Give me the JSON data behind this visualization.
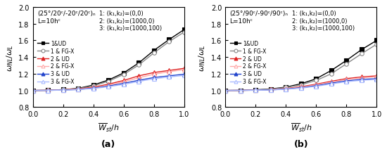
{
  "subplot_a": {
    "title_line1": "(25°/20ᶜ/-20ᶜ/20ᶜ)ₙ",
    "title_line2": "L=10hᶜ",
    "xlabel": "$\\overline{W}_{st}/h$",
    "ylabel": "$\\omega_{NL}/\\omega_L$",
    "label_note": "(a)",
    "x": [
      0.0,
      0.1,
      0.2,
      0.3,
      0.4,
      0.5,
      0.6,
      0.7,
      0.8,
      0.9,
      1.0
    ],
    "series": [
      {
        "label": "1&UD",
        "color": "#000000",
        "marker": "s",
        "filled": true,
        "data": [
          1.0,
          1.002,
          1.01,
          1.025,
          1.065,
          1.125,
          1.21,
          1.33,
          1.48,
          1.61,
          1.73
        ]
      },
      {
        "label": "1 & FG-X",
        "color": "#888888",
        "marker": "o",
        "filled": false,
        "data": [
          1.0,
          1.002,
          1.01,
          1.022,
          1.055,
          1.11,
          1.192,
          1.305,
          1.45,
          1.585,
          1.7
        ]
      },
      {
        "label": "2 & UD",
        "color": "#dd2222",
        "marker": "^",
        "filled": true,
        "data": [
          1.0,
          1.002,
          1.008,
          1.018,
          1.04,
          1.075,
          1.12,
          1.175,
          1.215,
          1.24,
          1.265
        ]
      },
      {
        "label": "2 & FG-X",
        "color": "#ffaaaa",
        "marker": "^",
        "filled": false,
        "data": [
          1.0,
          1.002,
          1.007,
          1.015,
          1.033,
          1.063,
          1.103,
          1.152,
          1.195,
          1.225,
          1.25
        ]
      },
      {
        "label": "3 & UD",
        "color": "#2244cc",
        "marker": "^",
        "filled": true,
        "data": [
          1.0,
          1.001,
          1.005,
          1.012,
          1.028,
          1.053,
          1.085,
          1.122,
          1.155,
          1.175,
          1.195
        ]
      },
      {
        "label": "3 & FG-X",
        "color": "#aabbff",
        "marker": "^",
        "filled": false,
        "data": [
          1.0,
          1.001,
          1.004,
          1.01,
          1.023,
          1.045,
          1.073,
          1.108,
          1.14,
          1.162,
          1.18
        ]
      }
    ],
    "legend_params": [
      "1: (k₁,k₂)=(0,0)",
      "2: (k₁,k₂)=(1000,0)",
      "3: (k₁,k₂)=(1000,100)"
    ],
    "ylim": [
      0.8,
      2.0
    ],
    "yticks": [
      0.8,
      1.0,
      1.2,
      1.4,
      1.6,
      1.8,
      2.0
    ],
    "xlim": [
      0.0,
      1.0
    ],
    "xticks": [
      0.0,
      0.2,
      0.4,
      0.6,
      0.8,
      1.0
    ]
  },
  "subplot_b": {
    "title_line1": "(25°/90ᶜ/-90ᶜ/90ᶜ)ₙ",
    "title_line2": "L=10hᶜ",
    "xlabel": "$\\overline{W}_{st}/h$",
    "ylabel": "$\\omega_{NL}/\\omega_L$",
    "label_note": "(b)",
    "x": [
      0.0,
      0.1,
      0.2,
      0.3,
      0.4,
      0.5,
      0.6,
      0.7,
      0.8,
      0.9,
      1.0
    ],
    "series": [
      {
        "label": "1&UD",
        "color": "#000000",
        "marker": "s",
        "filled": true,
        "data": [
          1.0,
          1.001,
          1.007,
          1.018,
          1.04,
          1.08,
          1.14,
          1.24,
          1.36,
          1.49,
          1.6
        ]
      },
      {
        "label": "1 & FG-X",
        "color": "#888888",
        "marker": "o",
        "filled": false,
        "data": [
          1.0,
          1.001,
          1.007,
          1.016,
          1.035,
          1.068,
          1.12,
          1.2,
          1.32,
          1.44,
          1.555
        ]
      },
      {
        "label": "2 & UD",
        "color": "#dd2222",
        "marker": "^",
        "filled": true,
        "data": [
          1.0,
          1.001,
          1.004,
          1.01,
          1.023,
          1.045,
          1.075,
          1.11,
          1.142,
          1.162,
          1.175
        ]
      },
      {
        "label": "2 & FG-X",
        "color": "#ffaaaa",
        "marker": "^",
        "filled": false,
        "data": [
          1.0,
          1.001,
          1.004,
          1.009,
          1.02,
          1.04,
          1.067,
          1.1,
          1.13,
          1.15,
          1.165
        ]
      },
      {
        "label": "3 & UD",
        "color": "#2244cc",
        "marker": "^",
        "filled": true,
        "data": [
          1.0,
          1.001,
          1.003,
          1.007,
          1.017,
          1.033,
          1.057,
          1.088,
          1.115,
          1.132,
          1.142
        ]
      },
      {
        "label": "3 & FG-X",
        "color": "#aabbff",
        "marker": "^",
        "filled": false,
        "data": [
          1.0,
          1.001,
          1.003,
          1.006,
          1.014,
          1.028,
          1.05,
          1.078,
          1.105,
          1.122,
          1.132
        ]
      }
    ],
    "legend_params": [
      "1: (k₁,k₂)=(0,0)",
      "2: (k₁,k₂)=(1000,0)",
      "3: (k₁,k₂)=(1000,100)"
    ],
    "ylim": [
      0.8,
      2.0
    ],
    "yticks": [
      0.8,
      1.0,
      1.2,
      1.4,
      1.6,
      1.8,
      2.0
    ],
    "xlim": [
      0.0,
      1.0
    ],
    "xticks": [
      0.0,
      0.2,
      0.4,
      0.6,
      0.8,
      1.0
    ]
  }
}
